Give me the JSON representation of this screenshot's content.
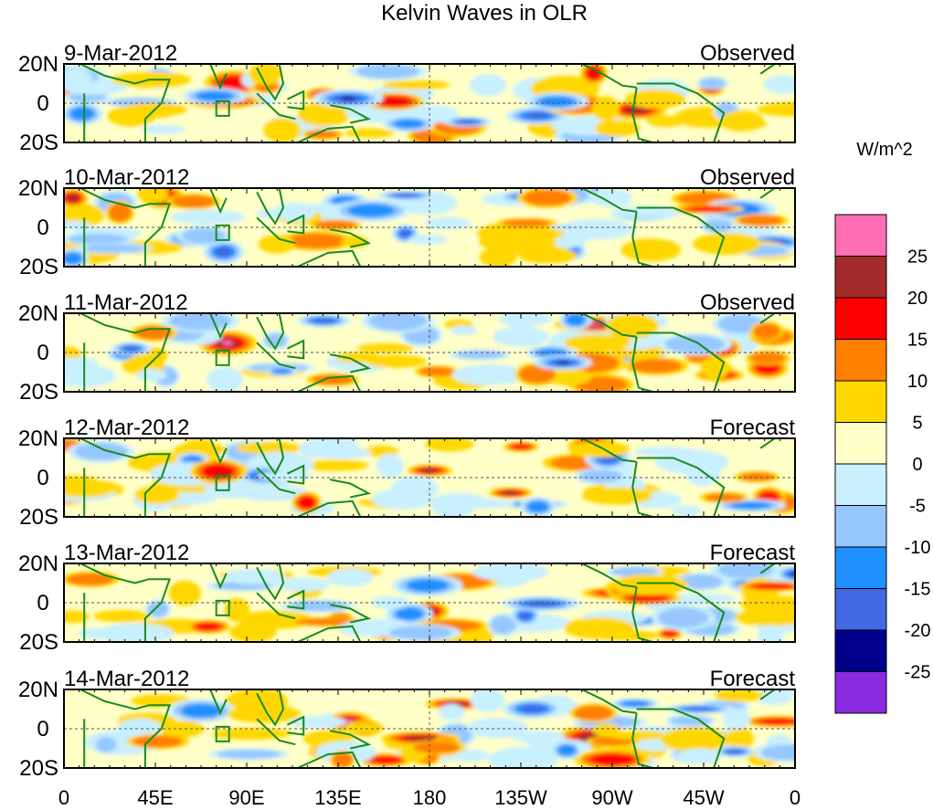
{
  "chart_data": {
    "type": "heatmap",
    "title": "Kelvin Waves in OLR",
    "units": "W/m^2",
    "x_ticks": [
      "0",
      "45E",
      "90E",
      "135E",
      "180",
      "135W",
      "90W",
      "45W",
      "0"
    ],
    "y_ticks": [
      "20N",
      "0",
      "20S"
    ],
    "colorbar": {
      "labels": [
        "25",
        "20",
        "15",
        "10",
        "5",
        "0",
        "-5",
        "-10",
        "-15",
        "-20",
        "-25"
      ],
      "colors": [
        "#ff6eb4",
        "#a52a2a",
        "#ff0000",
        "#ff7f00",
        "#ffd700",
        "#ffffc8",
        "#c8f0ff",
        "#96c8ff",
        "#1e90ff",
        "#4169e1",
        "#00008b",
        "#8a2be2"
      ]
    },
    "panels": [
      {
        "date": "9-Mar-2012",
        "kind": "Observed"
      },
      {
        "date": "10-Mar-2012",
        "kind": "Observed"
      },
      {
        "date": "11-Mar-2012",
        "kind": "Observed"
      },
      {
        "date": "12-Mar-2012",
        "kind": "Forecast"
      },
      {
        "date": "13-Mar-2012",
        "kind": "Forecast"
      },
      {
        "date": "14-Mar-2012",
        "kind": "Forecast"
      }
    ]
  }
}
